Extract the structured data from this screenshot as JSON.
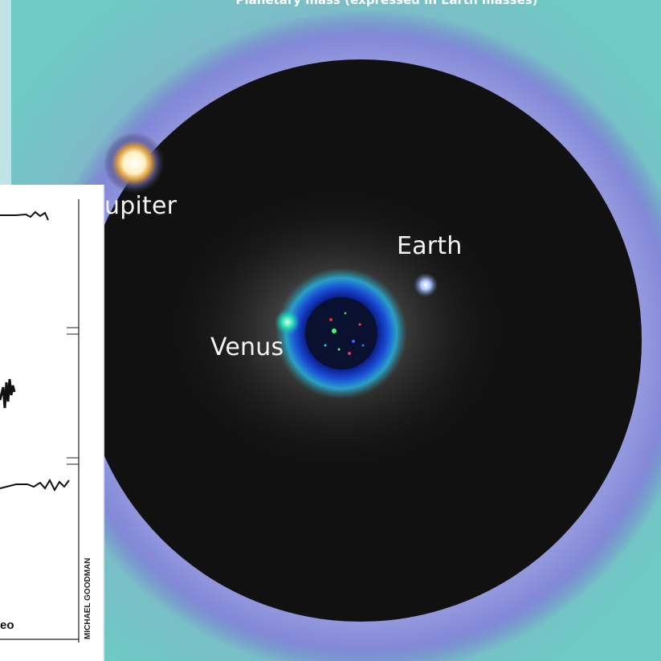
{
  "caption": "Planetary mass (expressed in Earth masses)",
  "labels": {
    "jupiter": "upiter",
    "earth": "Earth",
    "venus": "Venus"
  },
  "overlay": {
    "credit": "MICHAEL GOODMAN",
    "fragment": "eo"
  },
  "colors": {
    "background_teal": "#bfe3e6",
    "ring_lavender": "#8f93dc",
    "disk_black": "#101010",
    "venus_blue": "#1e3fb8",
    "label_white": "#f4f4f4"
  }
}
